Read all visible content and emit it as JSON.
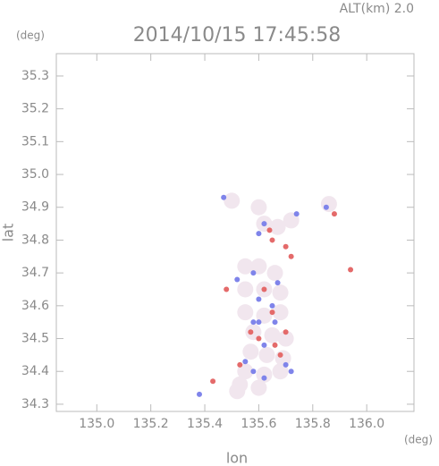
{
  "chart_data": {
    "type": "scatter",
    "title": "2014/10/15 17:45:58",
    "annotation": "ALT(km) 2.0",
    "y_unit": "(deg)",
    "x_unit": "(deg)",
    "x_label": "lon",
    "y_label": "lat",
    "xlim": [
      134.85,
      136.175
    ],
    "ylim": [
      34.278,
      35.368
    ],
    "xticks": [
      {
        "value": 135.0,
        "label": "135.0"
      },
      135.2,
      135.4,
      135.6,
      135.8,
      {
        "value": 136.0,
        "label": "136.0"
      }
    ],
    "yticks": [
      34.3,
      34.4,
      34.5,
      34.6,
      34.7,
      34.8,
      34.9,
      {
        "value": 35.0,
        "label": "35.0"
      },
      35.1,
      35.2,
      35.3
    ],
    "series": [
      {
        "color": "#f1e6ee",
        "size": 9,
        "x": [
          135.55,
          135.6,
          135.66,
          135.55,
          135.62,
          135.68,
          135.55,
          135.62,
          135.68,
          135.58,
          135.65,
          135.7,
          135.57,
          135.63,
          135.69,
          135.55,
          135.62,
          135.68,
          135.6,
          135.53,
          135.62,
          135.67,
          135.6,
          135.5,
          135.72,
          135.86,
          135.52
        ],
        "y": [
          34.72,
          34.72,
          34.7,
          34.65,
          34.65,
          34.64,
          34.58,
          34.57,
          34.58,
          34.52,
          34.51,
          34.5,
          34.46,
          34.45,
          34.44,
          34.4,
          34.39,
          34.4,
          34.35,
          34.36,
          34.85,
          34.84,
          34.9,
          34.92,
          34.86,
          34.91,
          34.34
        ]
      },
      {
        "color": "#7f84ea",
        "size": 3,
        "x": [
          135.6,
          135.62,
          135.65,
          135.58,
          135.6,
          135.66,
          135.62,
          135.7,
          135.72,
          135.55,
          135.58,
          135.62,
          135.52,
          135.58,
          135.67,
          135.38,
          135.85,
          135.47,
          135.74,
          135.6
        ],
        "y": [
          34.82,
          34.85,
          34.6,
          34.55,
          34.55,
          34.55,
          34.48,
          34.42,
          34.4,
          34.43,
          34.4,
          34.38,
          34.68,
          34.7,
          34.67,
          34.33,
          34.9,
          34.93,
          34.88,
          34.62
        ]
      },
      {
        "color": "#e46a6a",
        "size": 3,
        "x": [
          135.65,
          135.7,
          135.72,
          135.64,
          135.62,
          135.65,
          135.6,
          135.66,
          135.68,
          135.57,
          135.43,
          135.53,
          135.94,
          135.48,
          135.7,
          135.88
        ],
        "y": [
          34.8,
          34.78,
          34.75,
          34.83,
          34.65,
          34.58,
          34.5,
          34.48,
          34.45,
          34.52,
          34.37,
          34.42,
          34.71,
          34.65,
          34.52,
          34.88
        ]
      }
    ]
  }
}
